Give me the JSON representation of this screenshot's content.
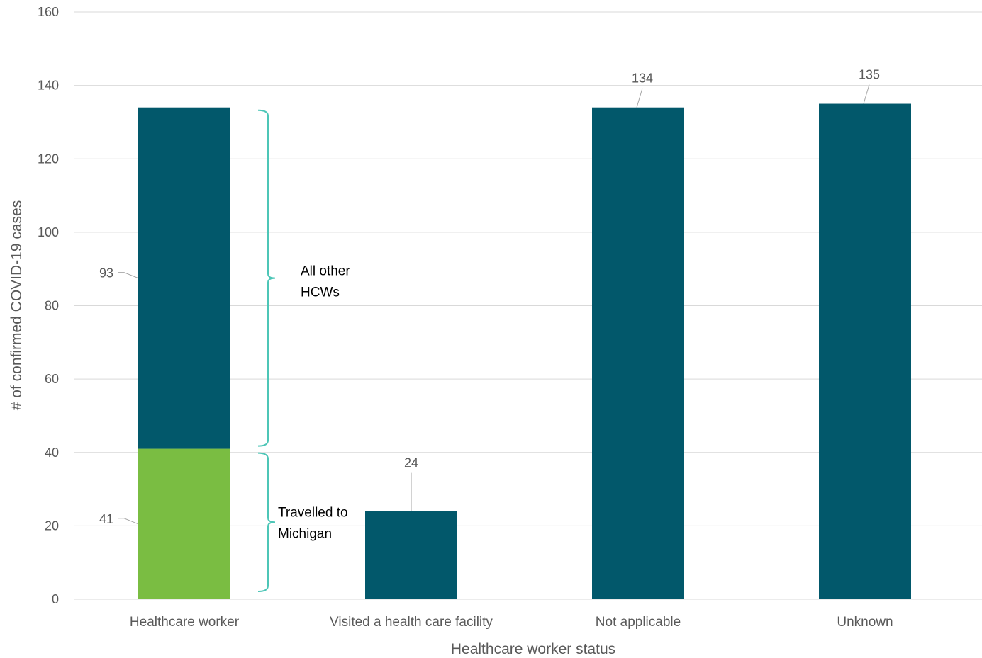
{
  "chart_data": {
    "type": "bar",
    "stacked": true,
    "categories": [
      "Healthcare worker",
      "Visited a health care facility",
      "Not applicable",
      "Unknown"
    ],
    "series": [
      {
        "values": [
          41,
          null,
          null,
          null
        ],
        "color": "#7ABD42"
      },
      {
        "values": [
          93,
          24,
          134,
          135
        ],
        "color": "#02586B"
      }
    ],
    "data_labels": [
      {
        "category": 0,
        "series": 0,
        "text": "41"
      },
      {
        "category": 0,
        "series": 1,
        "text": "93"
      },
      {
        "category": 1,
        "series": 1,
        "text": "24"
      },
      {
        "category": 2,
        "series": 1,
        "text": "134"
      },
      {
        "category": 3,
        "series": 1,
        "text": "135"
      }
    ],
    "xlabel": "Healthcare worker status",
    "ylabel": "# of confirmed COVID-19 cases",
    "ylim": [
      0,
      160
    ],
    "yticks": [
      0,
      20,
      40,
      60,
      80,
      100,
      120,
      140,
      160
    ],
    "grid": true,
    "legend": "none",
    "annotations": [
      {
        "lines": [
          "All other",
          "HCWs"
        ],
        "range": [
          41,
          134
        ],
        "bracket_color": "#4DC6B7"
      },
      {
        "lines": [
          "Travelled to",
          "Michigan"
        ],
        "range": [
          0,
          41
        ],
        "bracket_color": "#4DC6B7"
      }
    ],
    "colors": {
      "grid": "#D9D9D9",
      "text": "#595959",
      "leader": "#A6A6A6"
    }
  }
}
